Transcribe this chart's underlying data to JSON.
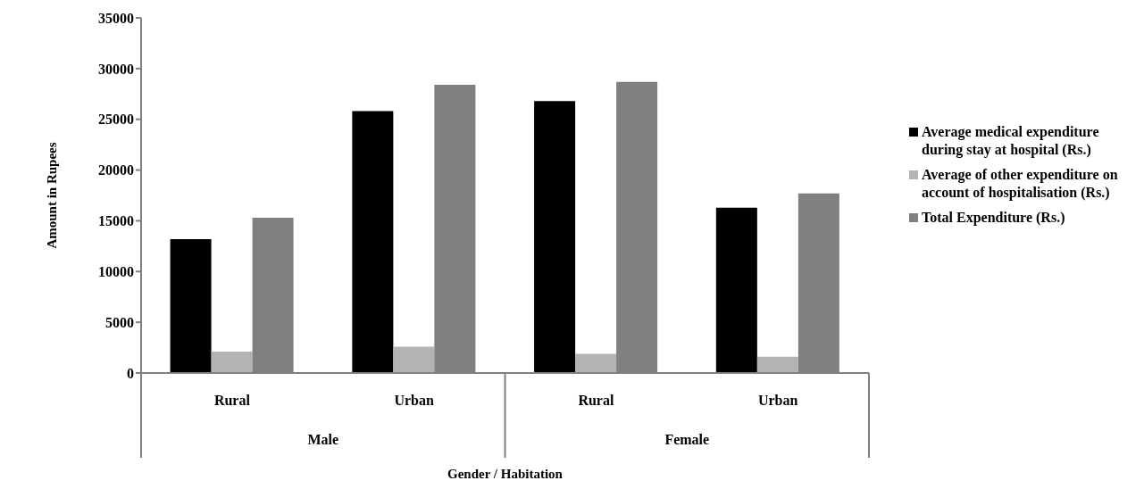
{
  "chart_data": {
    "type": "bar",
    "xlabel": "Gender / Habitation",
    "ylabel": "Amount in Rupees",
    "categories": [
      "Rural",
      "Urban",
      "Rural",
      "Urban"
    ],
    "annotations": [
      "Male",
      "Female"
    ],
    "series": [
      {
        "name": "Average medical expenditure during stay at hospital (Rs.)",
        "color": "#000000",
        "values": [
          13200,
          25800,
          26800,
          16300
        ]
      },
      {
        "name": "Average of other expenditure on account of hospitalisation (Rs.)",
        "color": "#b3b3b3",
        "values": [
          2100,
          2600,
          1900,
          1600
        ]
      },
      {
        "name": "Total Expenditure (Rs.)",
        "color": "#808080",
        "values": [
          15300,
          28400,
          28700,
          17700
        ]
      }
    ],
    "ylim": [
      0,
      35000
    ],
    "yticks": [
      0,
      5000,
      10000,
      15000,
      20000,
      25000,
      30000,
      35000
    ],
    "grid": false,
    "legend": "right"
  }
}
